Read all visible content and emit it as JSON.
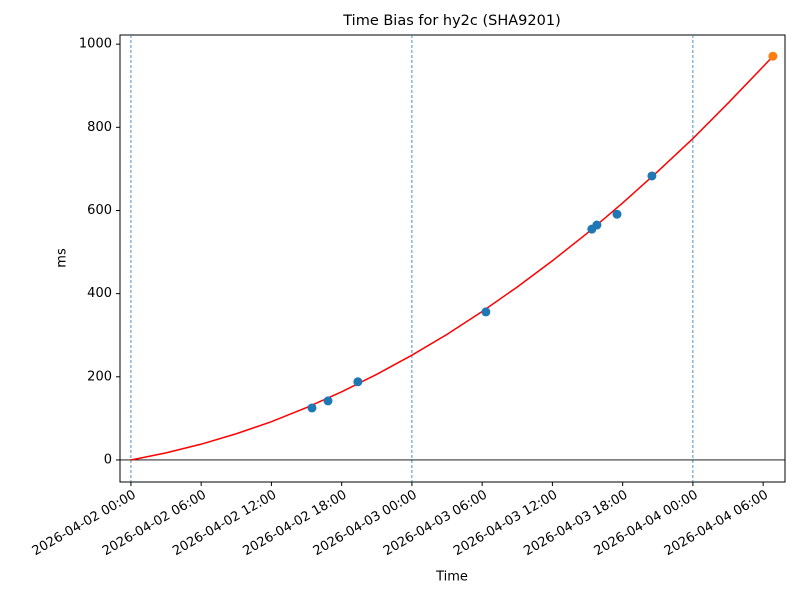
{
  "chart_data": {
    "type": "line",
    "title": "Time Bias for hy2c (SHA9201)",
    "x_label": "Time",
    "y_label": "ms",
    "xlim": [
      "2026-04-01 23:04",
      "2026-04-04 07:52"
    ],
    "ylim": [
      -53,
      1022
    ],
    "xticks": [
      "2026-04-02 00:00",
      "2026-04-02 06:00",
      "2026-04-02 12:00",
      "2026-04-02 18:00",
      "2026-04-03 00:00",
      "2026-04-03 06:00",
      "2026-04-03 12:00",
      "2026-04-03 18:00",
      "2026-04-04 00:00",
      "2026-04-04 06:00"
    ],
    "yticks": [
      0,
      200,
      400,
      600,
      800,
      1000
    ],
    "vlines": [
      "2026-04-02 00:00",
      "2026-04-03 00:00",
      "2026-04-04 00:00"
    ],
    "vline_color": "#1f77b4",
    "hline": 0,
    "series": [
      {
        "mode": "line",
        "color": "#ff0000",
        "x": [
          "2026-04-02 00:00",
          "2026-04-02 03:00",
          "2026-04-02 06:00",
          "2026-04-02 09:00",
          "2026-04-02 12:00",
          "2026-04-02 15:00",
          "2026-04-02 18:00",
          "2026-04-02 21:00",
          "2026-04-03 00:00",
          "2026-04-03 03:00",
          "2026-04-03 06:00",
          "2026-04-03 09:00",
          "2026-04-03 12:00",
          "2026-04-03 15:00",
          "2026-04-03 18:00",
          "2026-04-03 21:00",
          "2026-04-04 00:00",
          "2026-04-04 03:00",
          "2026-04-04 06:00",
          "2026-04-04 06:50"
        ],
        "values": [
          0,
          17,
          38,
          63,
          92,
          126,
          164,
          206,
          252,
          302,
          357,
          416,
          479,
          546,
          618,
          694,
          773,
          858,
          946,
          971
        ]
      },
      {
        "mode": "markers",
        "color": "#1f77b4",
        "x": [
          "2026-04-02 15:28",
          "2026-04-02 16:50",
          "2026-04-02 19:23",
          "2026-04-03 06:19",
          "2026-04-03 15:22",
          "2026-04-03 15:48",
          "2026-04-03 17:31",
          "2026-04-03 20:30"
        ],
        "values": [
          125,
          142,
          188,
          356,
          555,
          565,
          591,
          683
        ]
      },
      {
        "mode": "markers",
        "color": "#ff7f0e",
        "x": [
          "2026-04-04 06:50"
        ],
        "values": [
          971
        ]
      }
    ]
  }
}
